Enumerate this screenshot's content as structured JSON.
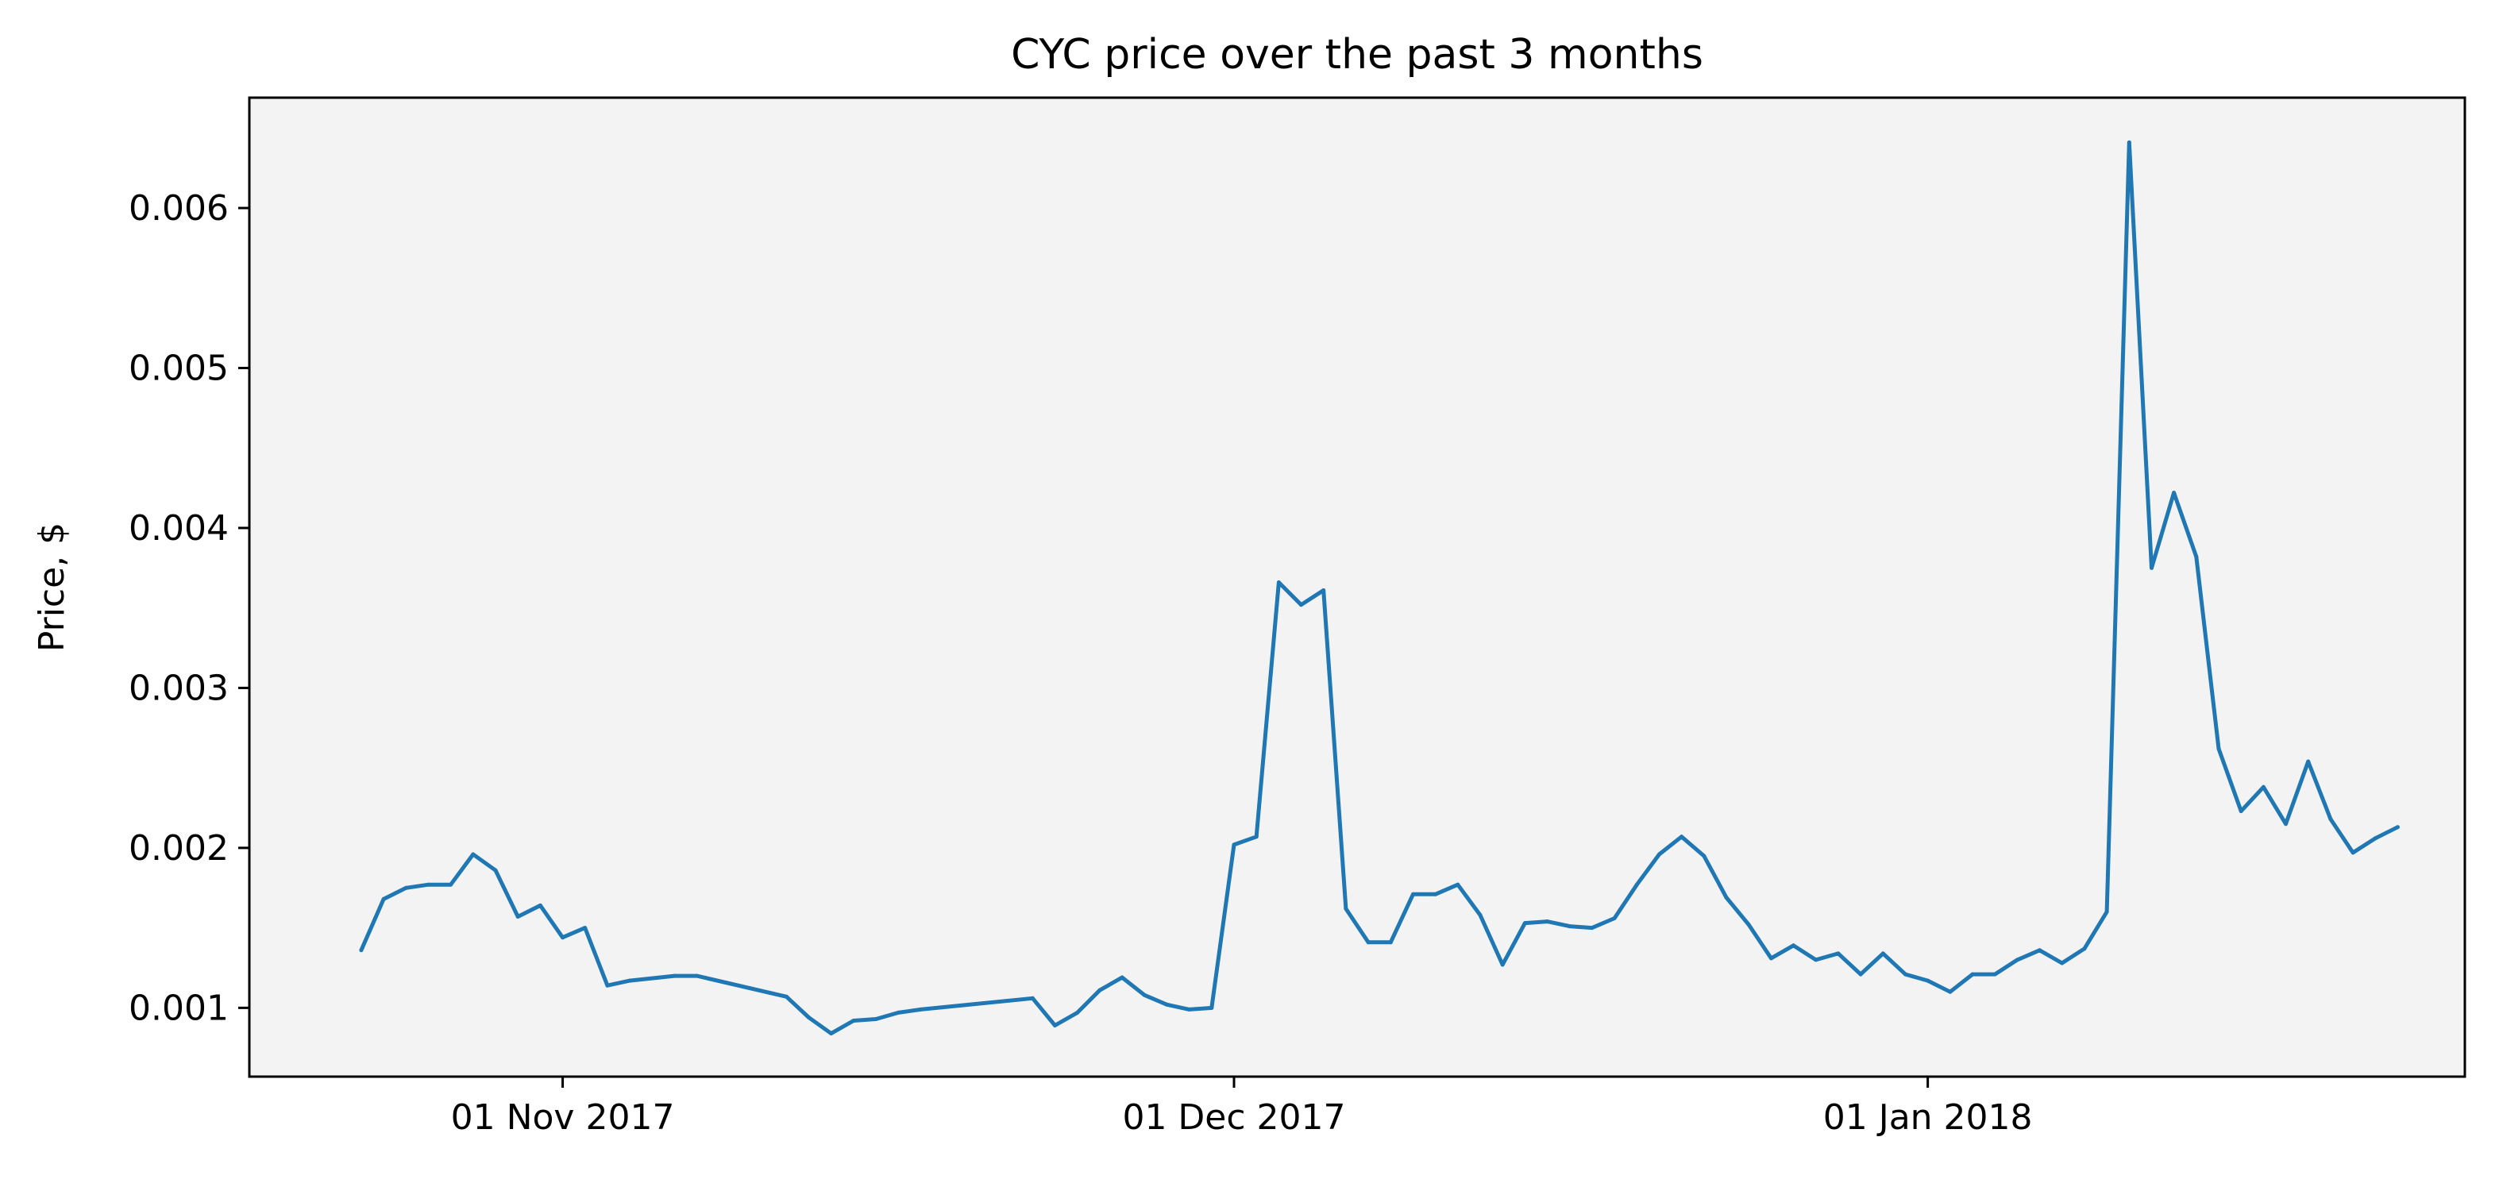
{
  "chart_data": {
    "type": "line",
    "title": "CYC price over the past 3 months",
    "xlabel": "",
    "ylabel": "Price, $",
    "x_tick_labels": [
      "01 Nov 2017",
      "01 Dec 2017",
      "01 Jan 2018"
    ],
    "x_tick_dates": [
      "2017-11-01",
      "2017-12-01",
      "2018-01-01"
    ],
    "y_ticks": [
      0.001,
      0.002,
      0.003,
      0.004,
      0.005,
      0.006
    ],
    "y_tick_labels": [
      "0.001",
      "0.002",
      "0.003",
      "0.004",
      "0.005",
      "0.006"
    ],
    "xlim": [
      "2017-10-18",
      "2018-01-25"
    ],
    "ylim": [
      0.00057,
      0.00669
    ],
    "grid": false,
    "colors": {
      "line": "#1f77b4",
      "plot_bg": "#f3f3f3",
      "axes": "#000000"
    },
    "series": [
      {
        "x": [
          "2017-10-23",
          "2017-10-24",
          "2017-10-25",
          "2017-10-26",
          "2017-10-27",
          "2017-10-28",
          "2017-10-29",
          "2017-10-30",
          "2017-10-31",
          "2017-11-01",
          "2017-11-02",
          "2017-11-03",
          "2017-11-04",
          "2017-11-06",
          "2017-11-07",
          "2017-11-11",
          "2017-11-12",
          "2017-11-13",
          "2017-11-14",
          "2017-11-15",
          "2017-11-16",
          "2017-11-17",
          "2017-11-22",
          "2017-11-23",
          "2017-11-24",
          "2017-11-25",
          "2017-11-26",
          "2017-11-27",
          "2017-11-28",
          "2017-11-29",
          "2017-11-30",
          "2017-12-01",
          "2017-12-02",
          "2017-12-03",
          "2017-12-04",
          "2017-12-05",
          "2017-12-06",
          "2017-12-07",
          "2017-12-08",
          "2017-12-09",
          "2017-12-10",
          "2017-12-11",
          "2017-12-12",
          "2017-12-13",
          "2017-12-14",
          "2017-12-15",
          "2017-12-16",
          "2017-12-17",
          "2017-12-18",
          "2017-12-19",
          "2017-12-20",
          "2017-12-21",
          "2017-12-22",
          "2017-12-23",
          "2017-12-24",
          "2017-12-25",
          "2017-12-26",
          "2017-12-27",
          "2017-12-28",
          "2017-12-29",
          "2017-12-30",
          "2017-12-31",
          "2018-01-01",
          "2018-01-02",
          "2018-01-03",
          "2018-01-04",
          "2018-01-05",
          "2018-01-06",
          "2018-01-07",
          "2018-01-08",
          "2018-01-09",
          "2018-01-10",
          "2018-01-11",
          "2018-01-12",
          "2018-01-13",
          "2018-01-14",
          "2018-01-15",
          "2018-01-16",
          "2018-01-17",
          "2018-01-18",
          "2018-01-19",
          "2018-01-20",
          "2018-01-21",
          "2018-01-22"
        ],
        "values": [
          0.00136,
          0.00168,
          0.00175,
          0.00177,
          0.00177,
          0.00196,
          0.00186,
          0.00157,
          0.00164,
          0.00144,
          0.0015,
          0.00114,
          0.00117,
          0.0012,
          0.0012,
          0.00107,
          0.00094,
          0.00084,
          0.00092,
          0.00093,
          0.00097,
          0.00099,
          0.00106,
          0.00089,
          0.00097,
          0.00111,
          0.00119,
          0.00108,
          0.00102,
          0.00099,
          0.001,
          0.00202,
          0.00207,
          0.00366,
          0.00352,
          0.00361,
          0.00162,
          0.00141,
          0.00141,
          0.00171,
          0.00171,
          0.00177,
          0.00158,
          0.00127,
          0.00153,
          0.00154,
          0.00151,
          0.0015,
          0.00156,
          0.00177,
          0.00196,
          0.00207,
          0.00195,
          0.00169,
          0.00152,
          0.00131,
          0.00139,
          0.0013,
          0.00134,
          0.00121,
          0.00134,
          0.00121,
          0.00117,
          0.0011,
          0.00121,
          0.00121,
          0.0013,
          0.00136,
          0.00128,
          0.00137,
          0.0016,
          0.00641,
          0.00375,
          0.00422,
          0.00382,
          0.00262,
          0.00223,
          0.00238,
          0.00215,
          0.00254,
          0.00218,
          0.00197,
          0.00206,
          0.00213
        ]
      }
    ]
  }
}
